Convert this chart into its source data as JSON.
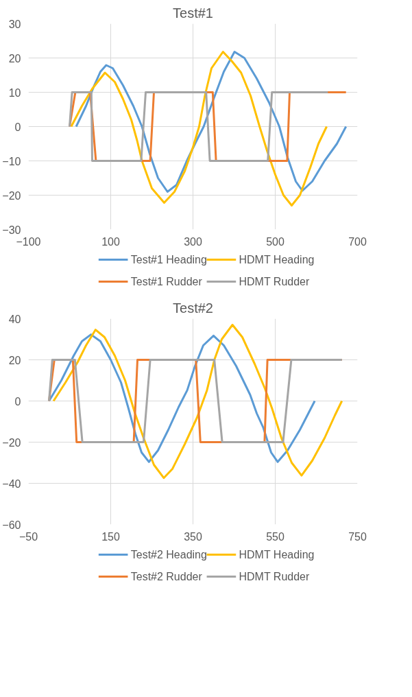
{
  "chart_data": [
    {
      "type": "line",
      "title": "Test#1",
      "xlim": [
        -100,
        700
      ],
      "xticks": [
        -100,
        100,
        300,
        500,
        700
      ],
      "ylim": [
        -30,
        30
      ],
      "yticks": [
        -30,
        -20,
        -10,
        0,
        10,
        20,
        30
      ],
      "grid": true,
      "legend": "bottom",
      "series": [
        {
          "name": "Test#1 Heading",
          "color": "#5b9bd5",
          "x": [
            16,
            40,
            60,
            75,
            89,
            105,
            130,
            155,
            176,
            195,
            215,
            238,
            260,
            285,
            305,
            326,
            350,
            375,
            401,
            425,
            455,
            485,
            510,
            530,
            550,
            566,
            590,
            620,
            650,
            672
          ],
          "values": [
            0,
            6,
            12,
            16,
            17.9,
            17,
            12,
            6,
            0,
            -8,
            -15,
            -19,
            -17,
            -10,
            -5,
            0,
            8,
            16,
            21.8,
            20,
            14,
            7,
            0,
            -9,
            -16,
            -18.7,
            -16,
            -10,
            -5,
            0
          ]
        },
        {
          "name": "HDMT Heading",
          "color": "#ffc000",
          "x": [
            4,
            30,
            55,
            86,
            110,
            130,
            150,
            164,
            176,
            200,
            230,
            255,
            280,
            300,
            315,
            329,
            345,
            373,
            395,
            417,
            440,
            462,
            480,
            500,
            520,
            540,
            560,
            585,
            605,
            625
          ],
          "values": [
            0,
            6,
            11,
            15.7,
            13,
            8,
            2,
            -4,
            -10,
            -18,
            -22.2,
            -19,
            -13,
            -6,
            0,
            9,
            17,
            21.8,
            19,
            15.7,
            9,
            0,
            -7,
            -14,
            -20,
            -23,
            -20,
            -12,
            -5,
            0
          ]
        },
        {
          "name": "Test#1 Rudder",
          "color": "#ed7d31",
          "x": [
            0,
            14,
            50,
            64,
            196,
            205,
            348,
            356,
            529,
            535,
            672
          ],
          "values": [
            0,
            10,
            10,
            -10,
            -10,
            10,
            10,
            -10,
            -10,
            10,
            10
          ]
        },
        {
          "name": "HDMT Rudder",
          "color": "#a5a5a5",
          "x": [
            0,
            6,
            53,
            55,
            174,
            185,
            332,
            341,
            482,
            492,
            628
          ],
          "values": [
            0,
            10,
            10,
            -10,
            -10,
            10,
            10,
            -10,
            -10,
            10,
            10
          ]
        }
      ]
    },
    {
      "type": "line",
      "title": "Test#2",
      "xlim": [
        -50,
        750
      ],
      "xticks": [
        -50,
        150,
        350,
        550,
        750
      ],
      "ylim": [
        -60,
        40
      ],
      "yticks": [
        -60,
        -40,
        -20,
        0,
        20,
        40
      ],
      "grid": true,
      "legend": "bottom",
      "series": [
        {
          "name": "Test#2 Heading",
          "color": "#5b9bd5",
          "x": [
            0,
            30,
            60,
            80,
            102,
            125,
            150,
            175,
            193,
            210,
            225,
            243,
            265,
            290,
            315,
            336,
            355,
            375,
            400,
            425,
            455,
            489,
            505,
            521,
            540,
            556,
            580,
            610,
            646
          ],
          "values": [
            0,
            10,
            22,
            29,
            32.3,
            29,
            20,
            9,
            -3.5,
            -16,
            -25,
            -29.6,
            -24,
            -14,
            -3,
            5.2,
            17,
            27,
            31.7,
            27,
            17,
            3,
            -6,
            -13,
            -25,
            -29.6,
            -24,
            -14,
            0
          ]
        },
        {
          "name": "HDMT Heading",
          "color": "#ffc000",
          "x": [
            11,
            40,
            70,
            90,
            113,
            135,
            160,
            185,
            209,
            230,
            255,
            279,
            300,
            330,
            360,
            384,
            402,
            420,
            446,
            470,
            500,
            525,
            542,
            565,
            590,
            614,
            640,
            670,
            695,
            712
          ],
          "values": [
            0,
            9,
            19,
            27,
            34.6,
            31,
            22,
            10,
            -6,
            -18,
            -31,
            -37.4,
            -33,
            -21,
            -8,
            5.2,
            20,
            30,
            37,
            31,
            18,
            6,
            -3.5,
            -18,
            -30,
            -36.2,
            -29,
            -18,
            -7,
            0
          ]
        },
        {
          "name": "Test#2 Rudder",
          "color": "#ed7d31",
          "x": [
            0,
            13,
            58,
            67,
            206,
            215,
            357,
            368,
            524,
            531,
            712
          ],
          "values": [
            0,
            20,
            20,
            -20,
            -20,
            20,
            20,
            -20,
            -20,
            20,
            20
          ]
        },
        {
          "name": "HDMT Rudder",
          "color": "#a5a5a5",
          "x": [
            0,
            8,
            63,
            81,
            230,
            246,
            402,
            421,
            569,
            589,
            712
          ],
          "values": [
            0,
            20,
            20,
            -20,
            -20,
            20,
            20,
            -20,
            -20,
            20,
            20
          ]
        }
      ]
    }
  ]
}
